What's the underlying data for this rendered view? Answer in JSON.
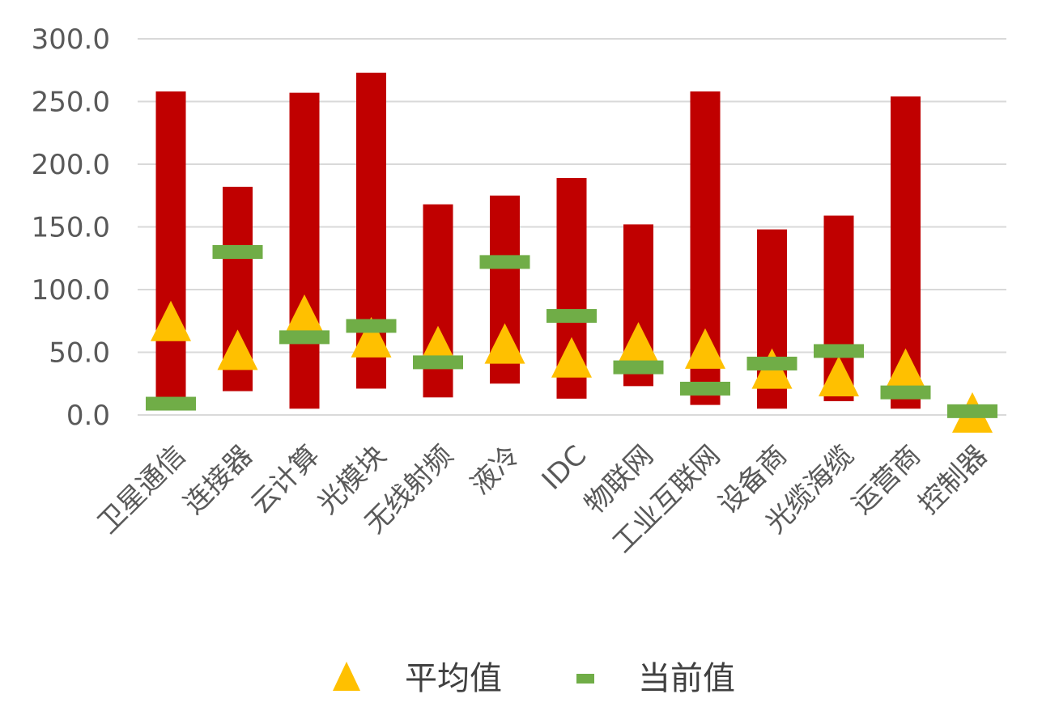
{
  "chart_data": {
    "type": "bar",
    "title": "",
    "xlabel": "",
    "ylabel": "",
    "ylim": [
      0,
      300
    ],
    "yticks": [
      "0.0",
      "50.0",
      "100.0",
      "150.0",
      "200.0",
      "250.0",
      "300.0"
    ],
    "grid": true,
    "legend_position": "bottom",
    "categories": [
      "卫星通信",
      "连接器",
      "云计算",
      "光模块",
      "无线射频",
      "液冷",
      "IDC",
      "物联网",
      "工业互联网",
      "设备商",
      "光缆海缆",
      "运营商",
      "控制器"
    ],
    "range_bars": {
      "color": "#C00000",
      "low": [
        8,
        19,
        5,
        21,
        14,
        25,
        13,
        23,
        8,
        5,
        11,
        5,
        1
      ],
      "high": [
        258,
        182,
        257,
        273,
        168,
        175,
        189,
        152,
        258,
        148,
        159,
        254,
        7
      ]
    },
    "series": [
      {
        "name": "平均值",
        "marker": "triangle",
        "color": "#FFC000",
        "values": [
          75,
          52,
          80,
          62,
          55,
          57,
          46,
          58,
          53,
          37,
          31,
          37,
          2
        ]
      },
      {
        "name": "当前值",
        "marker": "dash",
        "color": "#70AD47",
        "values": [
          9,
          130,
          62,
          71,
          42,
          122,
          79,
          38,
          21,
          41,
          51,
          18,
          3
        ]
      }
    ]
  }
}
